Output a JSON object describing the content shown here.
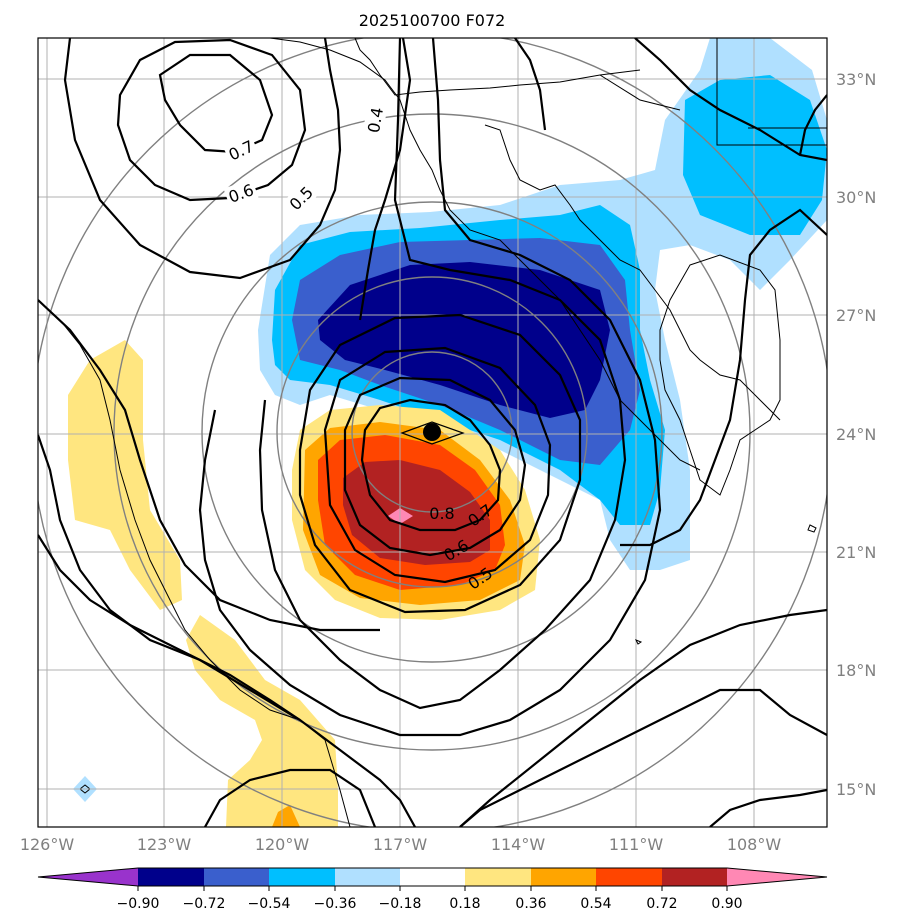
{
  "title": "2025100700 F072",
  "lat_ticks": [
    "33°N",
    "30°N",
    "27°N",
    "24°N",
    "21°N",
    "18°N",
    "15°N"
  ],
  "lon_ticks": [
    "126°W",
    "123°W",
    "120°W",
    "117°W",
    "114°W",
    "111°W",
    "108°W"
  ],
  "colorbar": {
    "ticks": [
      "−0.90",
      "−0.72",
      "−0.54",
      "−0.36",
      "−0.18",
      "0.18",
      "0.36",
      "0.54",
      "0.72",
      "0.90"
    ],
    "colors": {
      "lt_neg090": "#9933cc",
      "neg090_072": "#00008b",
      "neg072_054": "#3a5fcd",
      "neg054_036": "#00bfff",
      "neg036_018": "#b0e0ff",
      "neg018_018": "#ffffff",
      "p018_036": "#ffe680",
      "p036_054": "#ffa500",
      "p054_072": "#ff4500",
      "p072_090": "#b22222",
      "gt_090": "#ff88b4"
    }
  },
  "contour_labels": [
    "0.7",
    "0.6",
    "0.5",
    "0.4",
    "0.8",
    "0.7",
    "0.6",
    "0.5"
  ],
  "marker": {
    "type": "storm-center"
  }
}
